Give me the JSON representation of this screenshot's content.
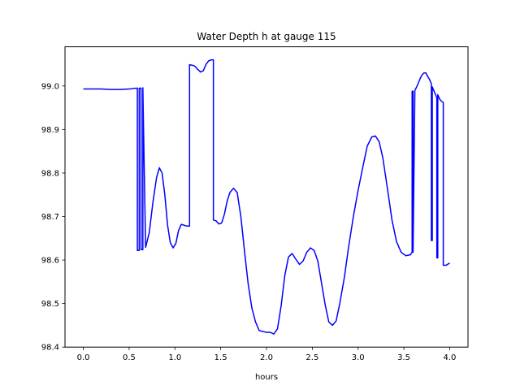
{
  "chart_data": {
    "type": "line",
    "title": "Water Depth h at gauge 115",
    "xlabel": "hours",
    "ylabel": "",
    "xlim": [
      -0.2,
      4.2
    ],
    "ylim": [
      98.4,
      99.09
    ],
    "xticks": [
      0.0,
      0.5,
      1.0,
      1.5,
      2.0,
      2.5,
      3.0,
      3.5,
      4.0
    ],
    "xtick_labels": [
      "0.0",
      "0.5",
      "1.0",
      "1.5",
      "2.0",
      "2.5",
      "3.0",
      "3.5",
      "4.0"
    ],
    "yticks": [
      98.4,
      98.5,
      98.6,
      98.7,
      98.8,
      98.9,
      99.0
    ],
    "ytick_labels": [
      "98.4",
      "98.5",
      "98.6",
      "98.7",
      "98.8",
      "98.9",
      "99.0"
    ],
    "grid": false,
    "series": [
      {
        "color": "#0000ff",
        "x": [
          0.0,
          0.1,
          0.2,
          0.3,
          0.4,
          0.5,
          0.58,
          0.59,
          0.59,
          0.61,
          0.61,
          0.63,
          0.63,
          0.65,
          0.65,
          0.68,
          0.72,
          0.76,
          0.8,
          0.83,
          0.86,
          0.89,
          0.92,
          0.95,
          0.98,
          1.01,
          1.04,
          1.07,
          1.1,
          1.13,
          1.16,
          1.16,
          1.18,
          1.2,
          1.22,
          1.25,
          1.28,
          1.31,
          1.34,
          1.37,
          1.4,
          1.42,
          1.42,
          1.45,
          1.48,
          1.51,
          1.54,
          1.57,
          1.6,
          1.64,
          1.68,
          1.72,
          1.76,
          1.8,
          1.84,
          1.88,
          1.92,
          1.96,
          2.0,
          2.04,
          2.08,
          2.12,
          2.16,
          2.2,
          2.24,
          2.28,
          2.32,
          2.36,
          2.4,
          2.44,
          2.48,
          2.52,
          2.56,
          2.6,
          2.64,
          2.68,
          2.72,
          2.76,
          2.8,
          2.85,
          2.9,
          2.95,
          3.0,
          3.05,
          3.1,
          3.15,
          3.19,
          3.23,
          3.27,
          3.32,
          3.37,
          3.42,
          3.47,
          3.52,
          3.57,
          3.59,
          3.59,
          3.6,
          3.6,
          3.62,
          3.64,
          3.66,
          3.68,
          3.7,
          3.72,
          3.74,
          3.76,
          3.78,
          3.8,
          3.8,
          3.81,
          3.81,
          3.83,
          3.85,
          3.86,
          3.86,
          3.87,
          3.87,
          3.89,
          3.91,
          3.93,
          3.93,
          3.96,
          4.0
        ],
        "y": [
          98.993,
          98.993,
          98.993,
          98.992,
          98.992,
          98.993,
          98.995,
          98.995,
          98.622,
          98.622,
          98.995,
          98.995,
          98.624,
          98.624,
          98.996,
          98.629,
          98.663,
          98.733,
          98.79,
          98.812,
          98.8,
          98.75,
          98.68,
          98.64,
          98.628,
          98.638,
          98.668,
          98.682,
          98.68,
          98.678,
          98.678,
          99.049,
          99.048,
          99.047,
          99.045,
          99.038,
          99.032,
          99.035,
          99.05,
          99.058,
          99.06,
          99.06,
          98.692,
          98.69,
          98.683,
          98.685,
          98.705,
          98.735,
          98.755,
          98.765,
          98.755,
          98.7,
          98.62,
          98.545,
          98.49,
          98.458,
          98.438,
          98.436,
          98.434,
          98.434,
          98.43,
          98.442,
          98.495,
          98.565,
          98.607,
          98.615,
          98.602,
          98.59,
          98.598,
          98.618,
          98.628,
          98.622,
          98.598,
          98.548,
          98.498,
          98.458,
          98.45,
          98.46,
          98.5,
          98.56,
          98.635,
          98.702,
          98.76,
          98.812,
          98.862,
          98.883,
          98.885,
          98.872,
          98.835,
          98.765,
          98.692,
          98.642,
          98.618,
          98.61,
          98.612,
          98.618,
          98.988,
          98.988,
          98.618,
          98.99,
          98.998,
          99.008,
          99.018,
          99.026,
          99.03,
          99.03,
          99.022,
          99.015,
          99.005,
          98.645,
          98.645,
          98.998,
          98.988,
          98.978,
          98.972,
          98.605,
          98.605,
          98.98,
          98.97,
          98.965,
          98.962,
          98.588,
          98.588,
          98.593
        ]
      }
    ]
  }
}
